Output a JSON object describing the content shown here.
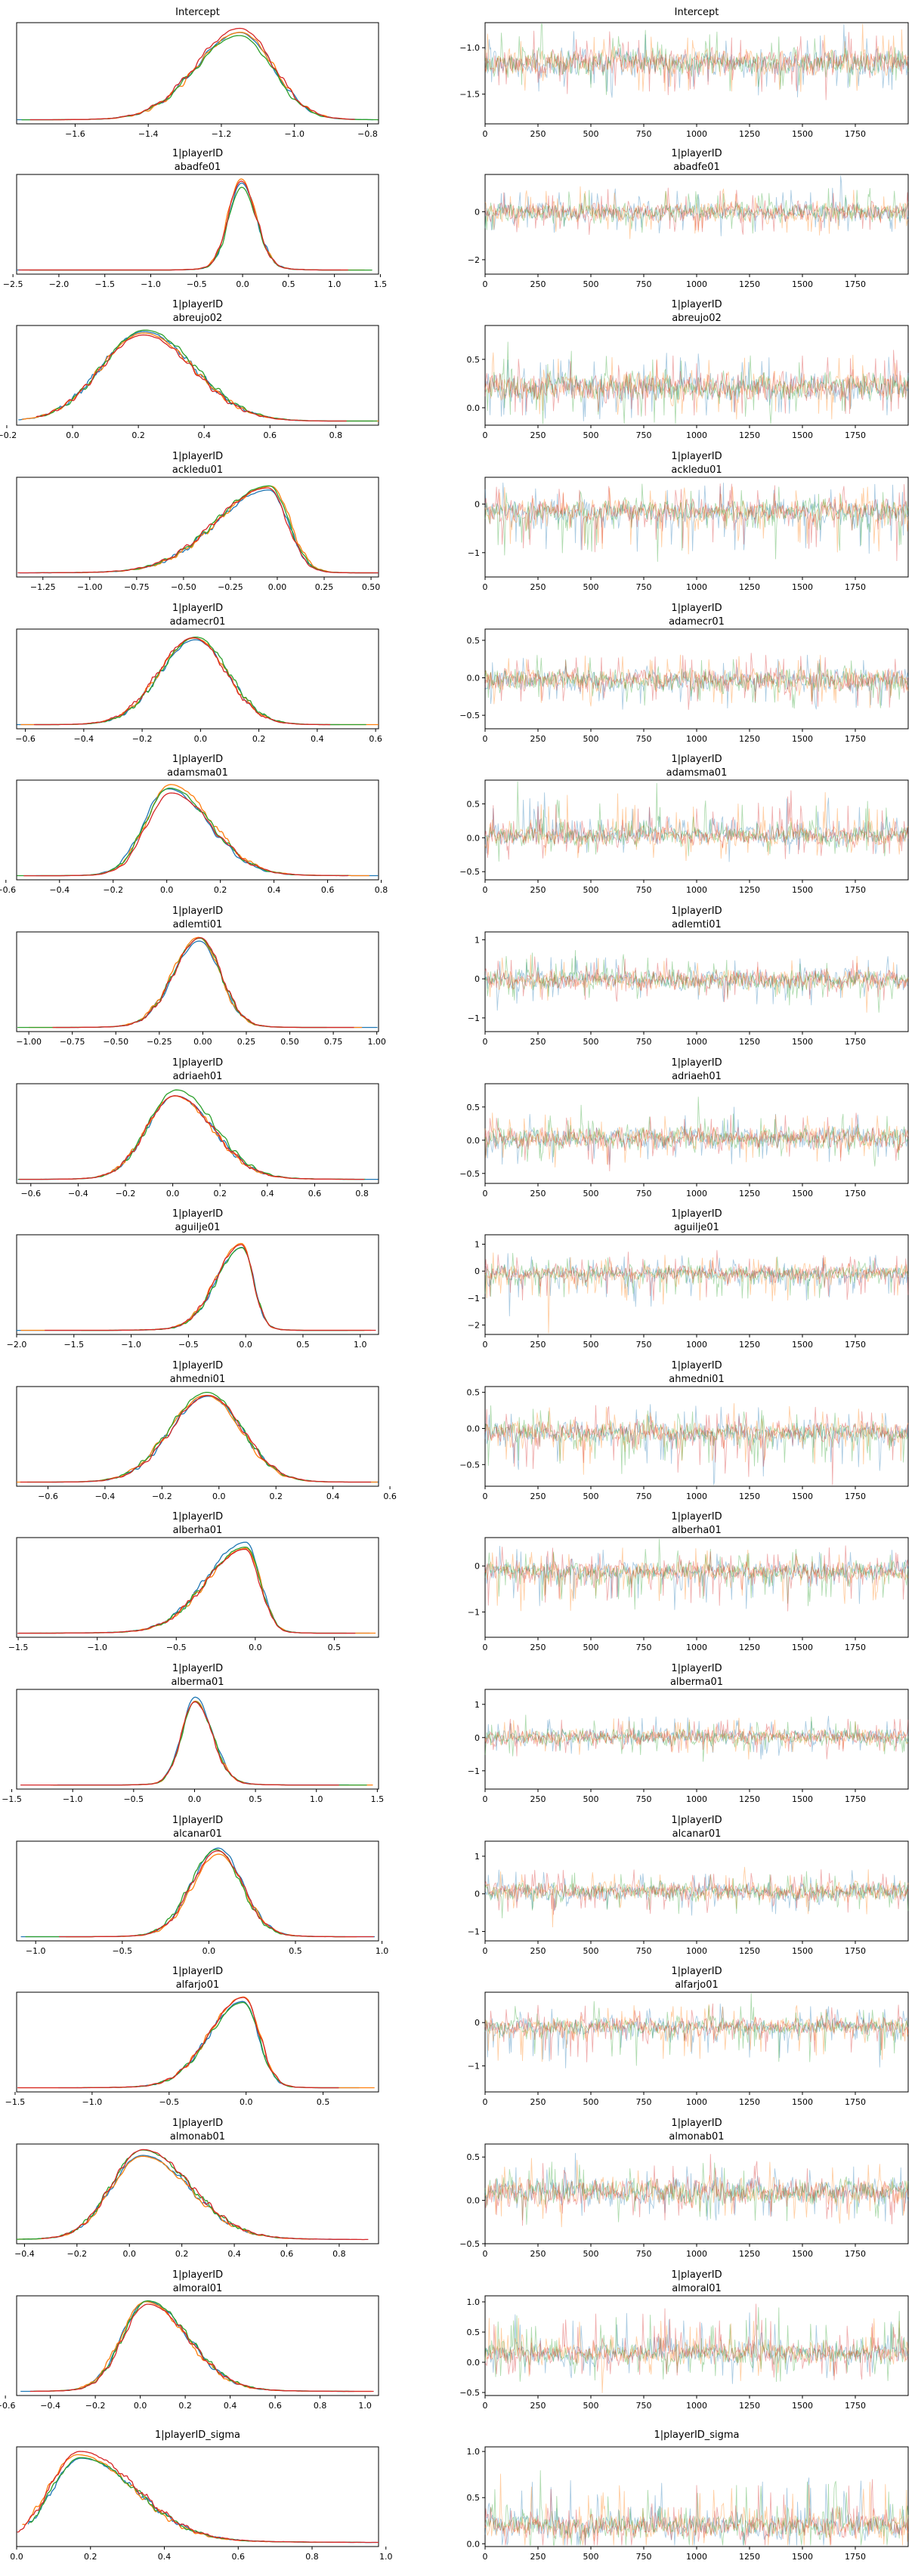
{
  "figure": {
    "kind": "mcmc-trace-plot-grid",
    "columns": [
      "posterior KDE",
      "trace"
    ],
    "n_chains": 4,
    "chain_colors": [
      "#1f77b4",
      "#ff7f0e",
      "#2ca02c",
      "#d62728"
    ],
    "spine_color": "#000000",
    "trace_xticks": {
      "values": [
        0,
        250,
        500,
        750,
        1000,
        1250,
        1500,
        1750
      ],
      "labels": [
        "0",
        "250",
        "500",
        "750",
        "1000",
        "1250",
        "1500",
        "1750"
      ]
    },
    "trace_xmax": 2000
  },
  "chart_data": {
    "type": "line",
    "description": "Each row: left = kernel density estimate of posterior (4 chains), right = trace of draws (4 chains). Parameters read from tick labels.",
    "rows": [
      {
        "title_lines": [
          "Intercept"
        ],
        "kde": {
          "xmin": -1.76,
          "xmax": -0.77,
          "peak": -1.15,
          "sd_left": 0.12,
          "sd_right": 0.09,
          "tail": 0.15,
          "xticks": [
            -1.6,
            -1.4,
            -1.2,
            -1.0,
            -0.8
          ],
          "xtick_labels": [
            "−1.6",
            "−1.4",
            "−1.2",
            "−1.0",
            "−0.8"
          ]
        },
        "trace": {
          "ymin": -1.82,
          "ymax": -0.73,
          "center": -1.16,
          "spread": 0.095,
          "spike": 0,
          "yticks": [
            -1.0,
            -1.5
          ],
          "ytick_labels": [
            "−1.0",
            "−1.5"
          ]
        }
      },
      {
        "title_lines": [
          "1|playerID",
          "abadfe01"
        ],
        "kde": {
          "xmin": -2.46,
          "xmax": 1.48,
          "peak": -0.01,
          "sd_left": 0.14,
          "sd_right": 0.16,
          "tail": 0.35,
          "xticks": [
            -2.5,
            -2.0,
            -1.5,
            -1.0,
            -0.5,
            0.0,
            0.5,
            1.0,
            1.5
          ],
          "xtick_labels": [
            "−2.5",
            "−2.0",
            "−1.5",
            "−1.0",
            "−0.5",
            "0.0",
            "0.5",
            "1.0",
            "1.5"
          ]
        },
        "trace": {
          "ymin": -2.6,
          "ymax": 1.55,
          "center": 0.0,
          "spread": 0.27,
          "spike": 0,
          "yticks": [
            0,
            -2
          ],
          "ytick_labels": [
            "0",
            "−2"
          ]
        }
      },
      {
        "title_lines": [
          "1|playerID",
          "abreujo02"
        ],
        "kde": {
          "xmin": -0.17,
          "xmax": 0.93,
          "peak": 0.22,
          "sd_left": 0.13,
          "sd_right": 0.15,
          "tail": 0.1,
          "xticks": [
            -0.2,
            0.0,
            0.2,
            0.4,
            0.6,
            0.8
          ],
          "xtick_labels": [
            "−0.2",
            "0.0",
            "0.2",
            "0.4",
            "0.6",
            "0.8"
          ]
        },
        "trace": {
          "ymin": -0.18,
          "ymax": 0.85,
          "center": 0.22,
          "spread": 0.1,
          "spike": 0,
          "yticks": [
            0.5,
            0.0
          ],
          "ytick_labels": [
            "0.5",
            "0.0"
          ]
        }
      },
      {
        "title_lines": [
          "1|playerID",
          "ackledu01"
        ],
        "kde": {
          "xmin": -1.39,
          "xmax": 0.54,
          "peak": -0.04,
          "sd_left": 0.28,
          "sd_right": 0.1,
          "tail": 0.2,
          "xticks": [
            -1.25,
            -1.0,
            -0.75,
            -0.5,
            -0.25,
            0.0,
            0.25,
            0.5
          ],
          "xtick_labels": [
            "−1.25",
            "−1.00",
            "−0.75",
            "−0.50",
            "−0.25",
            "0.00",
            "0.25",
            "0.50"
          ]
        },
        "trace": {
          "ymin": -1.5,
          "ymax": 0.55,
          "center": -0.16,
          "spread": 0.16,
          "spike": -1,
          "yticks": [
            0,
            -1
          ],
          "ytick_labels": [
            "0",
            "−1"
          ]
        }
      },
      {
        "title_lines": [
          "1|playerID",
          "adamecr01"
        ],
        "kde": {
          "xmin": -0.63,
          "xmax": 0.61,
          "peak": -0.02,
          "sd_left": 0.12,
          "sd_right": 0.11,
          "tail": 0.15,
          "xticks": [
            -0.6,
            -0.4,
            -0.2,
            0.0,
            0.2,
            0.4,
            0.6
          ],
          "xtick_labels": [
            "−0.6",
            "−0.4",
            "−0.2",
            "0.0",
            "0.2",
            "0.4",
            "0.6"
          ]
        },
        "trace": {
          "ymin": -0.68,
          "ymax": 0.65,
          "center": -0.03,
          "spread": 0.1,
          "spike": 0,
          "yticks": [
            0.5,
            0.0,
            -0.5
          ],
          "ytick_labels": [
            "0.5",
            "0.0",
            "−0.5"
          ]
        }
      },
      {
        "title_lines": [
          "1|playerID",
          "adamsma01"
        ],
        "kde": {
          "xmin": -0.56,
          "xmax": 0.79,
          "peak": 0.01,
          "sd_left": 0.09,
          "sd_right": 0.15,
          "tail": 0.2,
          "xticks": [
            -0.6,
            -0.4,
            -0.2,
            0.0,
            0.2,
            0.4,
            0.6,
            0.8
          ],
          "xtick_labels": [
            "−0.6",
            "−0.4",
            "−0.2",
            "0.0",
            "0.2",
            "0.4",
            "0.6",
            "0.8"
          ]
        },
        "trace": {
          "ymin": -0.62,
          "ymax": 0.85,
          "center": 0.04,
          "spread": 0.1,
          "spike": 1,
          "yticks": [
            0.5,
            0.0,
            -0.5
          ],
          "ytick_labels": [
            "0.5",
            "0.0",
            "−0.5"
          ]
        }
      },
      {
        "title_lines": [
          "1|playerID",
          "adlemti01"
        ],
        "kde": {
          "xmin": -1.07,
          "xmax": 1.01,
          "peak": -0.02,
          "sd_left": 0.15,
          "sd_right": 0.12,
          "tail": 0.25,
          "xticks": [
            -1.0,
            -0.75,
            -0.5,
            -0.25,
            0.0,
            0.25,
            0.5,
            0.75,
            1.0
          ],
          "xtick_labels": [
            "−1.00",
            "−0.75",
            "−0.50",
            "−0.25",
            "0.00",
            "0.25",
            "0.50",
            "0.75",
            "1.00"
          ]
        },
        "trace": {
          "ymin": -1.35,
          "ymax": 1.2,
          "center": -0.02,
          "spread": 0.17,
          "spike": 0,
          "yticks": [
            1,
            0,
            -1
          ],
          "ytick_labels": [
            "1",
            "0",
            "−1"
          ]
        }
      },
      {
        "title_lines": [
          "1|playerID",
          "adriaeh01"
        ],
        "kde": {
          "xmin": -0.66,
          "xmax": 0.87,
          "peak": 0.01,
          "sd_left": 0.12,
          "sd_right": 0.16,
          "tail": 0.2,
          "xticks": [
            -0.6,
            -0.4,
            -0.2,
            0.0,
            0.2,
            0.4,
            0.6,
            0.8
          ],
          "xtick_labels": [
            "−0.6",
            "−0.4",
            "−0.2",
            "0.0",
            "0.2",
            "0.4",
            "0.6",
            "0.8"
          ]
        },
        "trace": {
          "ymin": -0.65,
          "ymax": 0.85,
          "center": 0.03,
          "spread": 0.11,
          "spike": 0,
          "yticks": [
            0.5,
            0.0,
            -0.5
          ],
          "ytick_labels": [
            "0.5",
            "0.0",
            "−0.5"
          ]
        }
      },
      {
        "title_lines": [
          "1|playerID",
          "aguilje01"
        ],
        "kde": {
          "xmin": -2.0,
          "xmax": 1.16,
          "peak": -0.03,
          "sd_left": 0.22,
          "sd_right": 0.1,
          "tail": 0.3,
          "xticks": [
            -2.0,
            -1.5,
            -1.0,
            -0.5,
            0.0,
            0.5,
            1.0
          ],
          "xtick_labels": [
            "−2.0",
            "−1.5",
            "−1.0",
            "−0.5",
            "0.0",
            "0.5",
            "1.0"
          ]
        },
        "trace": {
          "ymin": -2.35,
          "ymax": 1.35,
          "center": -0.08,
          "spread": 0.2,
          "spike": -1,
          "yticks": [
            1,
            0,
            -1,
            -2
          ],
          "ytick_labels": [
            "1",
            "0",
            "−1",
            "−2"
          ]
        }
      },
      {
        "title_lines": [
          "1|playerID",
          "ahmedni01"
        ],
        "kde": {
          "xmin": -0.71,
          "xmax": 0.56,
          "peak": -0.04,
          "sd_left": 0.13,
          "sd_right": 0.12,
          "tail": 0.15,
          "xticks": [
            -0.6,
            -0.4,
            -0.2,
            0.0,
            0.2,
            0.4,
            0.6
          ],
          "xtick_labels": [
            "−0.6",
            "−0.4",
            "−0.2",
            "0.0",
            "0.2",
            "0.4",
            "0.6"
          ]
        },
        "trace": {
          "ymin": -0.8,
          "ymax": 0.58,
          "center": -0.06,
          "spread": 0.1,
          "spike": -1,
          "yticks": [
            0.5,
            0.0,
            -0.5
          ],
          "ytick_labels": [
            "0.5",
            "0.0",
            "−0.5"
          ]
        }
      },
      {
        "title_lines": [
          "1|playerID",
          "alberha01"
        ],
        "kde": {
          "xmin": -1.51,
          "xmax": 0.78,
          "peak": -0.06,
          "sd_left": 0.25,
          "sd_right": 0.09,
          "tail": 0.25,
          "xticks": [
            -1.5,
            -1.0,
            -0.5,
            0.0,
            0.5
          ],
          "xtick_labels": [
            "−1.5",
            "−1.0",
            "−0.5",
            "0.0",
            "0.5"
          ]
        },
        "trace": {
          "ymin": -1.55,
          "ymax": 0.62,
          "center": -0.12,
          "spread": 0.14,
          "spike": -1,
          "yticks": [
            0,
            -1
          ],
          "ytick_labels": [
            "0",
            "−1"
          ]
        }
      },
      {
        "title_lines": [
          "1|playerID",
          "alberma01"
        ],
        "kde": {
          "xmin": -1.46,
          "xmax": 1.51,
          "peak": 0.0,
          "sd_left": 0.11,
          "sd_right": 0.14,
          "tail": 0.3,
          "xticks": [
            -1.5,
            -1.0,
            -0.5,
            0.0,
            0.5,
            1.0,
            1.5
          ],
          "xtick_labels": [
            "−1.5",
            "−1.0",
            "−0.5",
            "0.0",
            "0.5",
            "1.0",
            "1.5"
          ]
        },
        "trace": {
          "ymin": -1.55,
          "ymax": 1.45,
          "center": 0.02,
          "spread": 0.16,
          "spike": 0,
          "yticks": [
            1,
            0,
            -1
          ],
          "ytick_labels": [
            "1",
            "0",
            "−1"
          ]
        }
      },
      {
        "title_lines": [
          "1|playerID",
          "alcanar01"
        ],
        "kde": {
          "xmin": -1.11,
          "xmax": 0.98,
          "peak": 0.05,
          "sd_left": 0.15,
          "sd_right": 0.14,
          "tail": 0.25,
          "xticks": [
            -1.0,
            -0.5,
            0.0,
            0.5,
            1.0
          ],
          "xtick_labels": [
            "−1.0",
            "−0.5",
            "0.0",
            "0.5",
            "1.0"
          ]
        },
        "trace": {
          "ymin": -1.25,
          "ymax": 1.4,
          "center": 0.06,
          "spread": 0.16,
          "spike": 0,
          "yticks": [
            1,
            0,
            -1
          ],
          "ytick_labels": [
            "1",
            "0",
            "−1"
          ]
        }
      },
      {
        "title_lines": [
          "1|playerID",
          "alfarjo01"
        ],
        "kde": {
          "xmin": -1.49,
          "xmax": 0.86,
          "peak": -0.02,
          "sd_left": 0.22,
          "sd_right": 0.1,
          "tail": 0.25,
          "xticks": [
            -1.5,
            -1.0,
            -0.5,
            0.0,
            0.5
          ],
          "xtick_labels": [
            "−1.5",
            "−1.0",
            "−0.5",
            "0.0",
            "0.5"
          ]
        },
        "trace": {
          "ymin": -1.6,
          "ymax": 0.7,
          "center": -0.1,
          "spread": 0.14,
          "spike": -1,
          "yticks": [
            0,
            -1
          ],
          "ytick_labels": [
            "0",
            "−1"
          ]
        }
      },
      {
        "title_lines": [
          "1|playerID",
          "almonab01"
        ],
        "kde": {
          "xmin": -0.43,
          "xmax": 0.95,
          "peak": 0.05,
          "sd_left": 0.12,
          "sd_right": 0.18,
          "tail": 0.25,
          "xticks": [
            -0.4,
            -0.2,
            0.0,
            0.2,
            0.4,
            0.6,
            0.8
          ],
          "xtick_labels": [
            "−0.4",
            "−0.2",
            "0.0",
            "0.2",
            "0.4",
            "0.6",
            "0.8"
          ]
        },
        "trace": {
          "ymin": -0.5,
          "ymax": 0.65,
          "center": 0.1,
          "spread": 0.1,
          "spike": 0,
          "yticks": [
            0.5,
            0.0,
            -0.5
          ],
          "ytick_labels": [
            "0.5",
            "0.0",
            "−0.5"
          ]
        }
      },
      {
        "title_lines": [
          "1|playerID",
          "almoral01"
        ],
        "kde": {
          "xmin": -0.55,
          "xmax": 1.06,
          "peak": 0.03,
          "sd_left": 0.11,
          "sd_right": 0.18,
          "tail": 0.25,
          "xticks": [
            -0.6,
            -0.4,
            -0.2,
            0.0,
            0.2,
            0.4,
            0.6,
            0.8,
            1.0
          ],
          "xtick_labels": [
            "−0.6",
            "−0.4",
            "−0.2",
            "0.0",
            "0.2",
            "0.4",
            "0.6",
            "0.8",
            "1.0"
          ]
        },
        "trace": {
          "ymin": -0.55,
          "ymax": 1.1,
          "center": 0.15,
          "spread": 0.12,
          "spike": 1,
          "yticks": [
            1.0,
            0.5,
            0.0,
            -0.5
          ],
          "ytick_labels": [
            "1.0",
            "0.5",
            "0.0",
            "−0.5"
          ]
        }
      },
      {
        "title_lines": [
          "1|playerID_sigma"
        ],
        "kde": {
          "xmin": 0.0,
          "xmax": 0.98,
          "peak": 0.17,
          "sd_left": 0.08,
          "sd_right": 0.15,
          "tail": 0.3,
          "xticks": [
            0.0,
            0.2,
            0.4,
            0.6,
            0.8,
            1.0
          ],
          "xtick_labels": [
            "0.0",
            "0.2",
            "0.4",
            "0.6",
            "0.8",
            "1.0"
          ]
        },
        "trace": {
          "ymin": -0.03,
          "ymax": 1.05,
          "center": 0.2,
          "spread": 0.09,
          "spike": 1,
          "yticks": [
            1.0,
            0.5,
            0.0
          ],
          "ytick_labels": [
            "1.0",
            "0.5",
            "0.0"
          ]
        }
      }
    ]
  }
}
